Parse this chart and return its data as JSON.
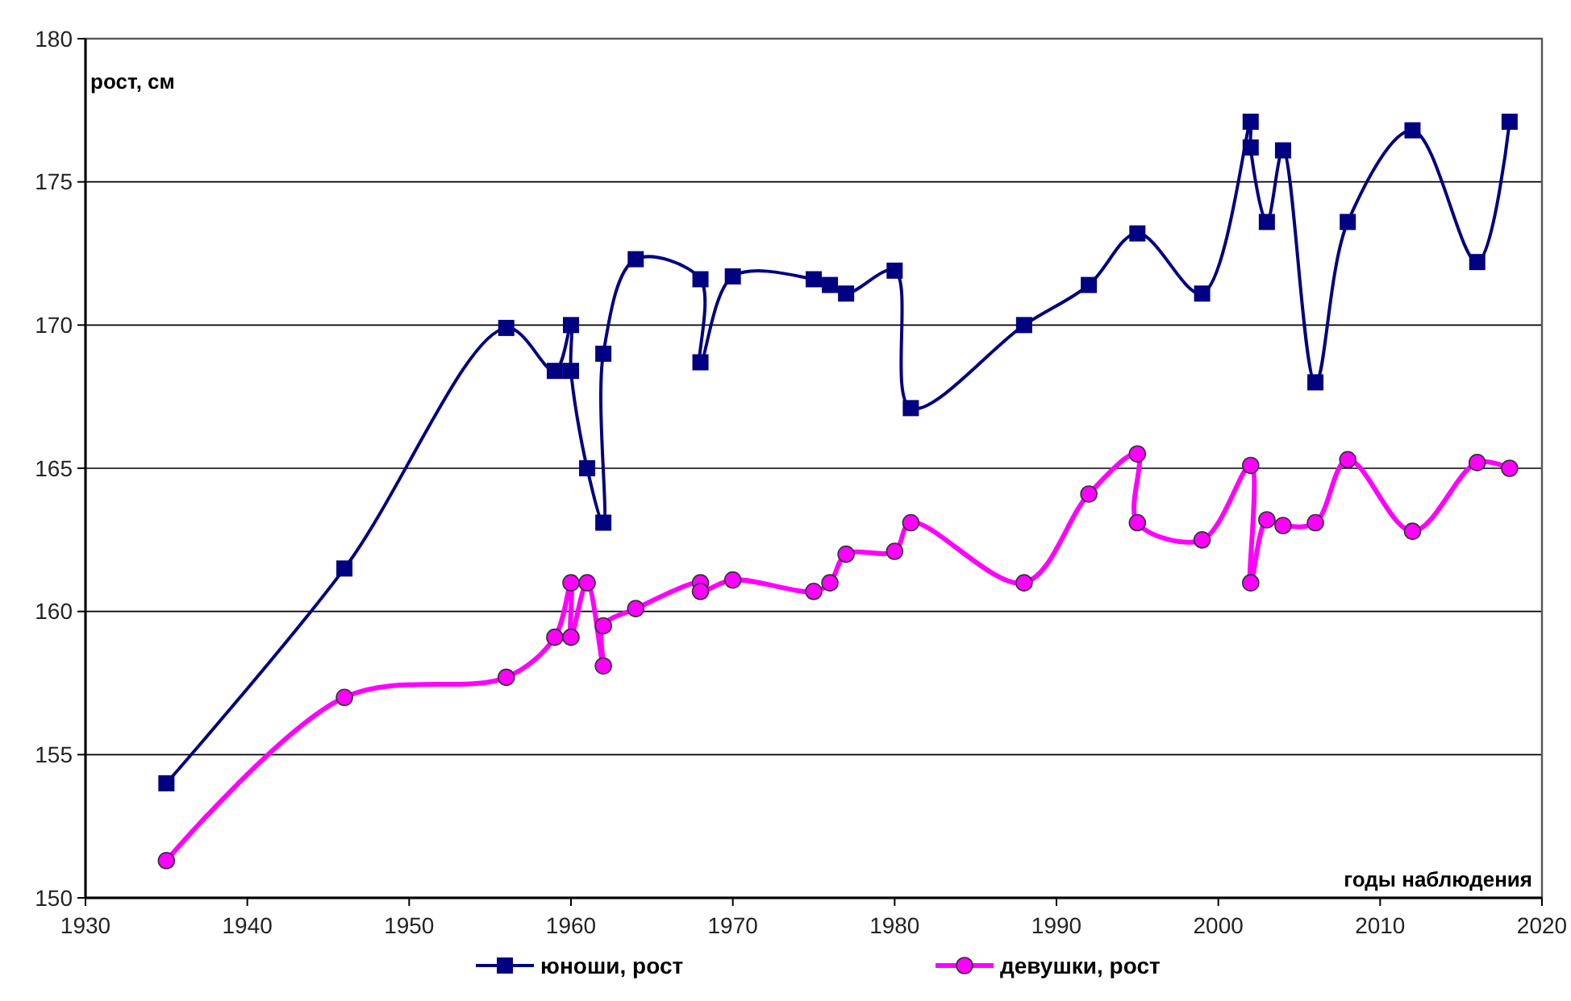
{
  "chart_data": {
    "type": "line",
    "xlabel": "годы наблюдения",
    "ylabel": "рост, см",
    "xlim": [
      1930,
      2020
    ],
    "xticks": [
      1930,
      1940,
      1950,
      1960,
      1970,
      1980,
      1990,
      2000,
      2010,
      2020
    ],
    "ylim": [
      150,
      180
    ],
    "yticks": [
      150,
      155,
      160,
      165,
      170,
      175,
      180
    ],
    "grid": "y",
    "legend": "bottom",
    "series": [
      {
        "name": "юноши, рост",
        "color": "#000080",
        "marker": "square",
        "x": [
          1935,
          1946,
          1956,
          1959,
          1960,
          1960,
          1961,
          1962,
          1962,
          1964,
          1968,
          1968,
          1970,
          1975,
          1976,
          1977,
          1980,
          1981,
          1988,
          1992,
          1995,
          1999,
          2002,
          2002,
          2003,
          2004,
          2006,
          2008,
          2012,
          2016,
          2018
        ],
        "values": [
          154,
          161.5,
          169.9,
          168.4,
          170,
          168.4,
          165,
          163.1,
          169,
          172.3,
          171.6,
          168.7,
          171.7,
          171.6,
          171.4,
          171.1,
          171.9,
          167.1,
          170,
          171.4,
          173.2,
          171.1,
          177.1,
          176.2,
          173.6,
          176.1,
          168,
          173.6,
          176.8,
          172.2,
          177.1
        ]
      },
      {
        "name": "девушки, рост",
        "color": "#ff00ff",
        "marker": "circle",
        "x": [
          1935,
          1946,
          1956,
          1959,
          1960,
          1960,
          1961,
          1962,
          1962,
          1964,
          1968,
          1968,
          1970,
          1975,
          1976,
          1977,
          1980,
          1981,
          1988,
          1992,
          1995,
          1995,
          1999,
          2002,
          2002,
          2003,
          2004,
          2006,
          2008,
          2012,
          2016,
          2018
        ],
        "values": [
          151.3,
          157,
          157.7,
          159.1,
          161,
          159.1,
          161,
          158.1,
          159.5,
          160.1,
          161,
          160.7,
          161.1,
          160.7,
          161,
          162,
          162.1,
          163.1,
          161,
          164.1,
          165.5,
          163.1,
          162.5,
          165.1,
          161,
          163.2,
          163,
          163.1,
          165.3,
          162.8,
          165.2,
          165
        ]
      }
    ]
  }
}
